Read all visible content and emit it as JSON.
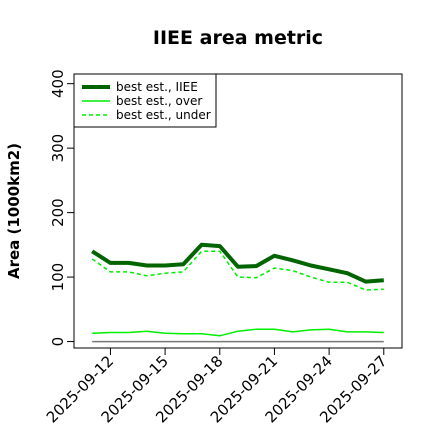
{
  "chart_data": {
    "type": "line",
    "title": "IIEE area metric",
    "xlabel": "",
    "ylabel": "Area (1000km2)",
    "x": [
      "2025-09-11",
      "2025-09-12",
      "2025-09-13",
      "2025-09-14",
      "2025-09-15",
      "2025-09-16",
      "2025-09-17",
      "2025-09-18",
      "2025-09-19",
      "2025-09-20",
      "2025-09-21",
      "2025-09-22",
      "2025-09-23",
      "2025-09-24",
      "2025-09-25",
      "2025-09-26",
      "2025-09-27"
    ],
    "x_ticks": [
      "2025-09-12",
      "2025-09-15",
      "2025-09-18",
      "2025-09-21",
      "2025-09-24",
      "2025-09-27"
    ],
    "y_ticks": [
      0,
      100,
      200,
      300,
      400
    ],
    "xlim": [
      "2025-09-10",
      "2025-09-28"
    ],
    "ylim": [
      -10,
      415
    ],
    "grid": false,
    "legend_position": "top-left",
    "series": [
      {
        "name": "best est., IIEE",
        "color": "#006400",
        "style": "solid",
        "width": "thick",
        "values": [
          140,
          122,
          122,
          118,
          118,
          120,
          150,
          148,
          116,
          117,
          133,
          126,
          118,
          112,
          106,
          93,
          95
        ]
      },
      {
        "name": "best est., over",
        "color": "#00ee00",
        "style": "solid",
        "width": "thin",
        "values": [
          13,
          14,
          14,
          16,
          13,
          12,
          12,
          9,
          16,
          19,
          19,
          15,
          18,
          19,
          15,
          15,
          14
        ]
      },
      {
        "name": "best est., under",
        "color": "#00ee00",
        "style": "dashed",
        "width": "thin",
        "values": [
          128,
          108,
          108,
          102,
          106,
          108,
          140,
          140,
          100,
          99,
          114,
          110,
          100,
          92,
          92,
          80,
          81
        ]
      },
      {
        "name": "",
        "color": "#777777",
        "style": "solid",
        "width": "thin",
        "values": [
          0,
          0,
          0,
          0,
          0,
          0,
          0,
          0,
          0,
          0,
          0,
          0,
          0,
          0,
          0,
          0,
          0
        ]
      }
    ]
  }
}
